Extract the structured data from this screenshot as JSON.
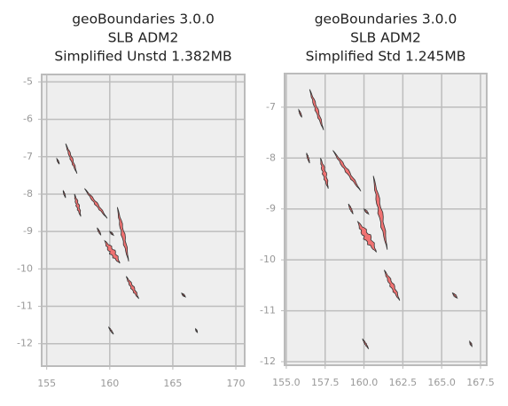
{
  "chart_data": [
    {
      "type": "map",
      "title": [
        "geoBoundaries 3.0.0",
        "SLB ADM2",
        "Simplified Unstd 1.382MB"
      ],
      "xlim": [
        154.6,
        170.7
      ],
      "ylim": [
        -12.6,
        -4.8
      ],
      "xticks": [
        155,
        160,
        165,
        170
      ],
      "yticks": [
        -5,
        -6,
        -7,
        -8,
        -9,
        -10,
        -11,
        -12
      ],
      "grid": true,
      "color": "#f07272"
    },
    {
      "type": "map",
      "title": [
        "geoBoundaries 3.0.0",
        "SLB ADM2",
        "Simplified Std 1.245MB"
      ],
      "xlim": [
        154.89,
        167.9
      ],
      "ylim": [
        -12.07,
        -6.34
      ],
      "xticks": [
        {
          "value": 155,
          "label": "155.0"
        },
        {
          "value": 157.5,
          "label": "157.5"
        },
        {
          "value": 160,
          "label": "160.0"
        },
        {
          "value": 162.5,
          "label": "162.5"
        },
        {
          "value": 165,
          "label": "165.0"
        },
        {
          "value": 167.5,
          "label": "167.5"
        }
      ],
      "yticks": [
        -7,
        -8,
        -9,
        -10,
        -11,
        -12
      ],
      "grid": true,
      "color": "#f07272"
    }
  ]
}
